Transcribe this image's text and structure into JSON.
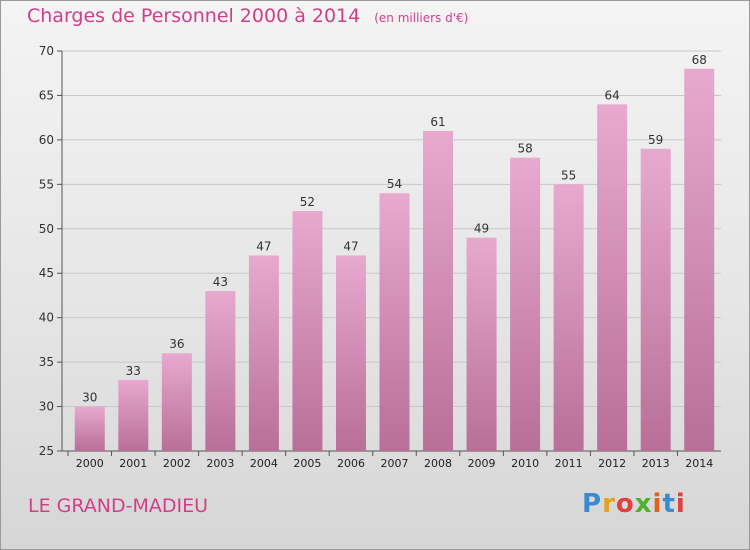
{
  "chart_data": {
    "type": "bar",
    "title": "Charges de Personnel 2000 à 2014",
    "subtitle": "(en milliers d'€)",
    "categories": [
      "2000",
      "2001",
      "2002",
      "2003",
      "2004",
      "2005",
      "2006",
      "2007",
      "2008",
      "2009",
      "2010",
      "2011",
      "2012",
      "2013",
      "2014"
    ],
    "values": [
      30,
      33,
      36,
      43,
      47,
      52,
      47,
      54,
      61,
      49,
      58,
      55,
      64,
      59,
      68
    ],
    "ylim": [
      25,
      70
    ],
    "yticks": [
      25,
      30,
      35,
      40,
      45,
      50,
      55,
      60,
      65,
      70
    ],
    "grid": true,
    "xlabel": "",
    "ylabel": "",
    "colors": {
      "bar_top": "#e8a9cf",
      "bar_bottom": "#b86f98",
      "title": "#d0408a"
    }
  },
  "footer": {
    "commune": "LE GRAND-MADIEU",
    "logo": "Proxiti",
    "logo_colors": [
      "#3a8ad0",
      "#e8a020",
      "#e04040",
      "#50b030",
      "#e06020",
      "#3a8ad0",
      "#e04040"
    ]
  }
}
